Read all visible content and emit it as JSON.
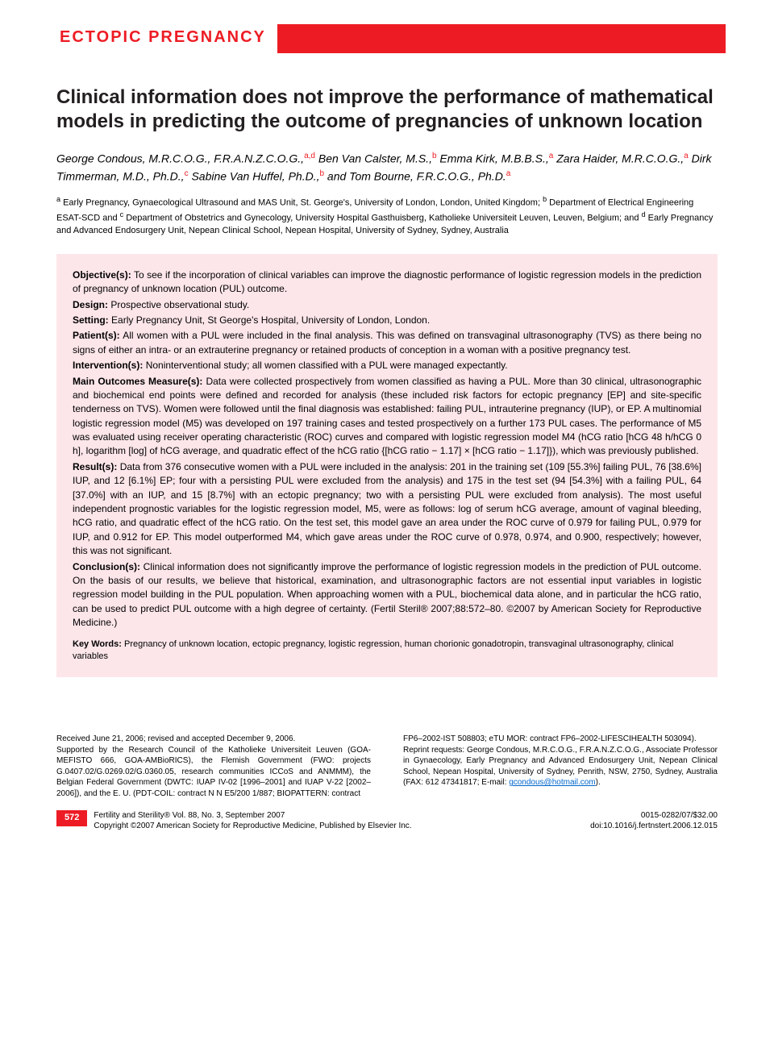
{
  "category": "ECTOPIC PREGNANCY",
  "title": "Clinical information does not improve the performance of mathematical models in predicting the outcome of pregnancies of unknown location",
  "authors_html": "George Condous, M.R.C.O.G., F.R.A.N.Z.C.O.G.,<sup>a,d</sup> Ben Van Calster, M.S.,<sup>b</sup> Emma Kirk, M.B.B.S.,<sup>a</sup> Zara Haider, M.R.C.O.G.,<sup>a</sup> Dirk Timmerman, M.D., Ph.D.,<sup>c</sup> Sabine Van Huffel, Ph.D.,<sup>b</sup> and Tom Bourne, F.R.C.O.G., Ph.D.<sup>a</sup>",
  "affiliations_html": "<sup>a</sup> Early Pregnancy, Gynaecological Ultrasound and MAS Unit, St. George's, University of London, London, United Kingdom; <sup>b</sup> Department of Electrical Engineering ESAT-SCD and <sup>c</sup> Department of Obstetrics and Gynecology, University Hospital Gasthuisberg, Katholieke Universiteit Leuven, Leuven, Belgium; and <sup>d</sup> Early Pregnancy and Advanced Endosurgery Unit, Nepean Clinical School, Nepean Hospital, University of Sydney, Sydney, Australia",
  "abstract": {
    "objective": {
      "label": "Objective(s):",
      "text": "To see if the incorporation of clinical variables can improve the diagnostic performance of logistic regression models in the prediction of pregnancy of unknown location (PUL) outcome."
    },
    "design": {
      "label": "Design:",
      "text": "Prospective observational study."
    },
    "setting": {
      "label": "Setting:",
      "text": "Early Pregnancy Unit, St George's Hospital, University of London, London."
    },
    "patients": {
      "label": "Patient(s):",
      "text": "All women with a PUL were included in the final analysis. This was defined on transvaginal ultrasonography (TVS) as there being no signs of either an intra- or an extrauterine pregnancy or retained products of conception in a woman with a positive pregnancy test."
    },
    "interventions": {
      "label": "Intervention(s):",
      "text": "Noninterventional study; all women classified with a PUL were managed expectantly."
    },
    "outcomes": {
      "label": "Main Outcomes Measure(s):",
      "text": "Data were collected prospectively from women classified as having a PUL. More than 30 clinical, ultrasonographic and biochemical end points were defined and recorded for analysis (these included risk factors for ectopic pregnancy [EP] and site-specific tenderness on TVS). Women were followed until the final diagnosis was established: failing PUL, intrauterine pregnancy (IUP), or EP. A multinomial logistic regression model (M5) was developed on 197 training cases and tested prospectively on a further 173 PUL cases. The performance of M5 was evaluated using receiver operating characteristic (ROC) curves and compared with logistic regression model M4 (hCG ratio [hCG 48 h/hCG 0 h], logarithm [log] of hCG average, and quadratic effect of the hCG ratio {[hCG ratio − 1.17] × [hCG ratio − 1.17]}), which was previously published."
    },
    "results": {
      "label": "Result(s):",
      "text": "Data from 376 consecutive women with a PUL were included in the analysis: 201 in the training set (109 [55.3%] failing PUL, 76 [38.6%] IUP, and 12 [6.1%] EP; four with a persisting PUL were excluded from the analysis) and 175 in the test set (94 [54.3%] with a failing PUL, 64 [37.0%] with an IUP, and 15 [8.7%] with an ectopic pregnancy; two with a persisting PUL were excluded from analysis). The most useful independent prognostic variables for the logistic regression model, M5, were as follows: log of serum hCG average, amount of vaginal bleeding, hCG ratio, and quadratic effect of the hCG ratio. On the test set, this model gave an area under the ROC curve of 0.979 for failing PUL, 0.979 for IUP, and 0.912 for EP. This model outperformed M4, which gave areas under the ROC curve of 0.978, 0.974, and 0.900, respectively; however, this was not significant."
    },
    "conclusions": {
      "label": "Conclusion(s):",
      "text": "Clinical information does not significantly improve the performance of logistic regression models in the prediction of PUL outcome. On the basis of our results, we believe that historical, examination, and ultrasonographic factors are not essential input variables in logistic regression model building in the PUL population. When approaching women with a PUL, biochemical data alone, and in particular the hCG ratio, can be used to predict PUL outcome with a high degree of certainty. (Fertil Steril® 2007;88:572–80. ©2007 by American Society for Reproductive Medicine.)"
    },
    "keywords": {
      "label": "Key Words:",
      "text": "Pregnancy of unknown location, ectopic pregnancy, logistic regression, human chorionic gonadotropin, transvaginal ultrasonography, clinical variables"
    }
  },
  "footer": {
    "received": "Received June 21, 2006; revised and accepted December 9, 2006.",
    "supported": "Supported by the Research Council of the Katholieke Universiteit Leuven (GOA-MEFISTO 666, GOA-AMBioRICS), the Flemish Government (FWO: projects G.0407.02/G.0269.02/G.0360.05, research communities ICCoS and ANMMM), the Belgian Federal Government (DWTC: IUAP IV-02 [1996–2001] and IUAP V-22 [2002–2006]), and the E. U. (PDT-COIL: contract N N E5/200 1/887; BIOPATTERN: contract",
    "supported_cont": "FP6–2002-IST 508803; eTU MOR: contract FP6–2002-LIFESCIHEALTH 503094).",
    "reprint": "Reprint requests: George Condous, M.R.C.O.G., F.R.A.N.Z.C.O.G., Associate Professor in Gynaecology, Early Pregnancy and Advanced Endosurgery Unit, Nepean Clinical School, Nepean Hospital, University of Sydney, Penrith, NSW, 2750, Sydney, Australia (FAX: 612 47341817; E-mail: ",
    "reprint_email": "gcondous@hotmail.com",
    "reprint_end": ")."
  },
  "page_footer": {
    "page_number": "572",
    "journal_line1": "Fertility and Sterility® Vol. 88, No. 3, September 2007",
    "journal_line2": "Copyright ©2007 American Society for Reproductive Medicine, Published by Elsevier Inc.",
    "issn": "0015-0282/07/$32.00",
    "doi": "doi:10.1016/j.fertnstert.2006.12.015"
  }
}
